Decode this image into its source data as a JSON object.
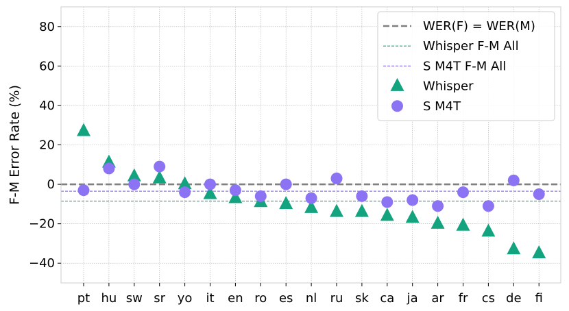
{
  "chart_data": {
    "type": "scatter",
    "ylabel": "F-M Error Rate (%)",
    "ylim": [
      -50,
      90
    ],
    "yticks": [
      -40,
      -20,
      0,
      20,
      40,
      60,
      80
    ],
    "categories": [
      "pt",
      "hu",
      "sw",
      "sr",
      "yo",
      "it",
      "en",
      "ro",
      "es",
      "nl",
      "ru",
      "sk",
      "ca",
      "ja",
      "ar",
      "fr",
      "cs",
      "de",
      "fi"
    ],
    "series": [
      {
        "name": "Whisper",
        "marker": "triangle",
        "color": "#14a37f",
        "values": [
          27,
          11,
          4,
          3,
          0,
          -5,
          -7,
          -9,
          -10,
          -12,
          -14,
          -14,
          -16,
          -17,
          -20,
          -21,
          -24,
          -33,
          -35
        ]
      },
      {
        "name": "S M4T",
        "marker": "circle",
        "color": "#8b73f4",
        "values": [
          -3,
          8,
          0,
          9,
          -4,
          0,
          -3,
          -6,
          0,
          -7,
          3,
          -6,
          -9,
          -8,
          -11,
          -4,
          -11,
          2,
          -5
        ]
      }
    ],
    "reference_lines": [
      {
        "name": "WER(F) = WER(M)",
        "y": 0,
        "color": "#808080",
        "style": "dashed-thick"
      },
      {
        "name": "Whisper F-M All",
        "y": -8.5,
        "color": "#14a37f",
        "style": "dashed-thin"
      },
      {
        "name": "S M4T F-M All",
        "y": -3.5,
        "color": "#8b73f4",
        "style": "dashed-thin"
      }
    ],
    "legend": {
      "placement": "top-right",
      "entries": [
        "WER(F) = WER(M)",
        "Whisper F-M All",
        "S M4T F-M All",
        "Whisper",
        "S M4T"
      ]
    },
    "grid": true
  }
}
